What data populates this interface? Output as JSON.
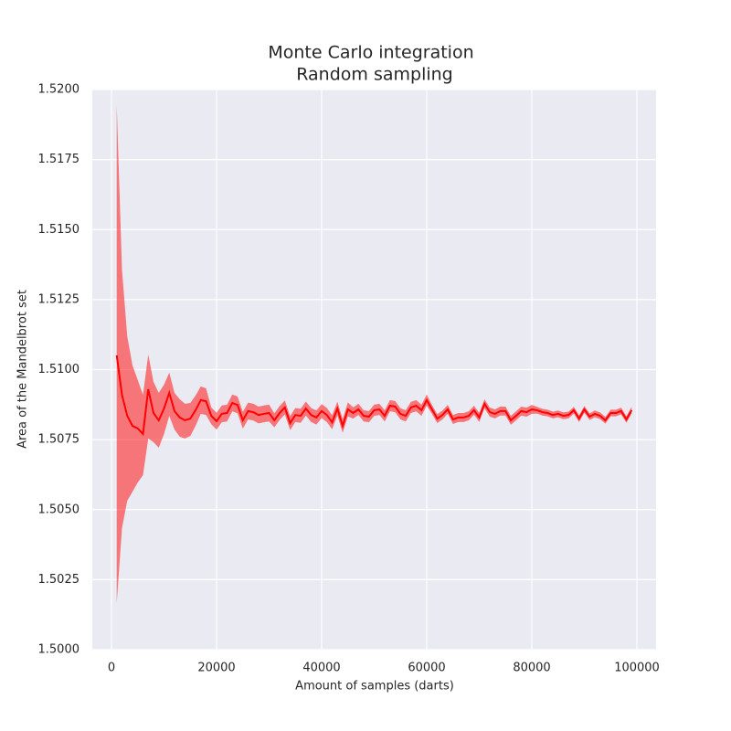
{
  "chart_data": {
    "type": "line",
    "title": "Monte Carlo integration",
    "subtitle": "Random sampling",
    "x_label": "Amount of samples (darts)",
    "y_label": "Area of the Mandelbrot set",
    "color": "#ff0000",
    "band_color": "#ff0000",
    "grid": true,
    "xlim": [
      -3650,
      103650
    ],
    "ylim": [
      1.5,
      1.52
    ],
    "xticks": [
      0,
      20000,
      40000,
      60000,
      80000,
      100000
    ],
    "yticks": [
      {
        "value": 1.5,
        "label": "1.5000"
      },
      {
        "value": 1.5025,
        "label": "1.5025"
      },
      {
        "value": 1.505,
        "label": "1.5050"
      },
      {
        "value": 1.5075,
        "label": "1.5075"
      },
      {
        "value": 1.51,
        "label": "1.5100"
      },
      {
        "value": 1.5125,
        "label": "1.5125"
      },
      {
        "value": 1.515,
        "label": "1.5150"
      },
      {
        "value": 1.5175,
        "label": "1.5175"
      },
      {
        "value": 1.52,
        "label": "1.5200"
      }
    ],
    "x": [
      1000,
      2000,
      3000,
      4000,
      5000,
      6000,
      7000,
      8000,
      9000,
      10000,
      11000,
      12000,
      13000,
      14000,
      15000,
      16000,
      17000,
      18000,
      19000,
      20000,
      21000,
      22000,
      23000,
      24000,
      25000,
      26000,
      27000,
      28000,
      29000,
      30000,
      31000,
      32000,
      33000,
      34000,
      35000,
      36000,
      37000,
      38000,
      39000,
      40000,
      41000,
      42000,
      43000,
      44000,
      45000,
      46000,
      47000,
      48000,
      49000,
      50000,
      51000,
      52000,
      53000,
      54000,
      55000,
      56000,
      57000,
      58000,
      59000,
      60000,
      61000,
      62000,
      63000,
      64000,
      65000,
      66000,
      67000,
      68000,
      69000,
      70000,
      71000,
      72000,
      73000,
      74000,
      75000,
      76000,
      77000,
      78000,
      79000,
      80000,
      81000,
      82000,
      83000,
      84000,
      85000,
      86000,
      87000,
      88000,
      89000,
      90000,
      91000,
      92000,
      93000,
      94000,
      95000,
      96000,
      97000,
      98000,
      99000
    ],
    "values": [
      1.51051,
      1.5091,
      1.50835,
      1.50799,
      1.5079,
      1.5077,
      1.5093,
      1.50845,
      1.50819,
      1.50861,
      1.50917,
      1.50852,
      1.50829,
      1.50819,
      1.50825,
      1.50855,
      1.50891,
      1.50887,
      1.50835,
      1.50816,
      1.50842,
      1.50845,
      1.50881,
      1.50874,
      1.50819,
      1.50852,
      1.50848,
      1.50838,
      1.50842,
      1.50845,
      1.50819,
      1.50845,
      1.50865,
      1.50809,
      1.50838,
      1.50835,
      1.50861,
      1.50838,
      1.50829,
      1.50852,
      1.50838,
      1.50812,
      1.50861,
      1.50799,
      1.50858,
      1.50845,
      1.50858,
      1.50835,
      1.50832,
      1.50855,
      1.50858,
      1.50835,
      1.50871,
      1.50868,
      1.50842,
      1.50835,
      1.50865,
      1.50871,
      1.50855,
      1.50891,
      1.50858,
      1.50825,
      1.50838,
      1.50858,
      1.50822,
      1.50829,
      1.50829,
      1.50835,
      1.50855,
      1.50829,
      1.50878,
      1.50848,
      1.50842,
      1.50852,
      1.50852,
      1.50819,
      1.50835,
      1.50852,
      1.50848,
      1.50858,
      1.50855,
      1.50848,
      1.50845,
      1.50838,
      1.50842,
      1.50835,
      1.50838,
      1.50855,
      1.50825,
      1.50858,
      1.50832,
      1.50842,
      1.50835,
      1.50819,
      1.50845,
      1.50845,
      1.50852,
      1.50822,
      1.50855
    ],
    "lower": [
      1.50166,
      1.50434,
      1.50532,
      1.50564,
      1.50597,
      1.50623,
      1.50754,
      1.50741,
      1.50721,
      1.5077,
      1.50835,
      1.50786,
      1.5076,
      1.50754,
      1.50763,
      1.50799,
      1.50842,
      1.50838,
      1.50805,
      1.50786,
      1.50812,
      1.50815,
      1.50851,
      1.50844,
      1.50789,
      1.50822,
      1.50818,
      1.50808,
      1.50812,
      1.50815,
      1.50794,
      1.5082,
      1.5084,
      1.50784,
      1.50813,
      1.5081,
      1.50836,
      1.50813,
      1.50804,
      1.50827,
      1.50813,
      1.50787,
      1.50836,
      1.50774,
      1.50833,
      1.50825,
      1.50838,
      1.50815,
      1.50812,
      1.50835,
      1.50838,
      1.50815,
      1.50851,
      1.50848,
      1.50822,
      1.50815,
      1.50845,
      1.50851,
      1.50835,
      1.50871,
      1.50842,
      1.50809,
      1.50822,
      1.50842,
      1.50806,
      1.50813,
      1.50813,
      1.50819,
      1.50839,
      1.50813,
      1.50862,
      1.50832,
      1.50826,
      1.50836,
      1.50836,
      1.50803,
      1.50819,
      1.50836,
      1.50832,
      1.50842,
      1.50843,
      1.50836,
      1.50833,
      1.50826,
      1.5083,
      1.50823,
      1.50826,
      1.50843,
      1.50813,
      1.50846,
      1.5082,
      1.5083,
      1.50823,
      1.50807,
      1.50833,
      1.50833,
      1.5084,
      1.5081,
      1.50843
    ],
    "upper": [
      1.51945,
      1.51357,
      1.51119,
      1.51015,
      1.50963,
      1.5091,
      1.51054,
      1.50956,
      1.50917,
      1.50946,
      1.50989,
      1.50917,
      1.50894,
      1.50878,
      1.50881,
      1.50907,
      1.5094,
      1.50933,
      1.50865,
      1.50846,
      1.50872,
      1.50875,
      1.50911,
      1.50904,
      1.50849,
      1.50882,
      1.50878,
      1.50868,
      1.50872,
      1.50875,
      1.50844,
      1.5087,
      1.5089,
      1.50834,
      1.50863,
      1.5086,
      1.50886,
      1.50863,
      1.50854,
      1.50877,
      1.50863,
      1.50837,
      1.50886,
      1.50824,
      1.50883,
      1.50865,
      1.50878,
      1.50855,
      1.50852,
      1.50875,
      1.50878,
      1.50855,
      1.50891,
      1.50888,
      1.50862,
      1.50855,
      1.50885,
      1.50891,
      1.50875,
      1.50911,
      1.50874,
      1.50841,
      1.50854,
      1.50874,
      1.50838,
      1.50845,
      1.50845,
      1.50851,
      1.50871,
      1.50845,
      1.50894,
      1.50864,
      1.50858,
      1.50868,
      1.50868,
      1.50835,
      1.50851,
      1.50868,
      1.50864,
      1.50874,
      1.50867,
      1.5086,
      1.50857,
      1.5085,
      1.50854,
      1.50847,
      1.5085,
      1.50867,
      1.50837,
      1.5087,
      1.50844,
      1.50854,
      1.50847,
      1.50831,
      1.50857,
      1.50857,
      1.50864,
      1.50834,
      1.50867
    ]
  }
}
